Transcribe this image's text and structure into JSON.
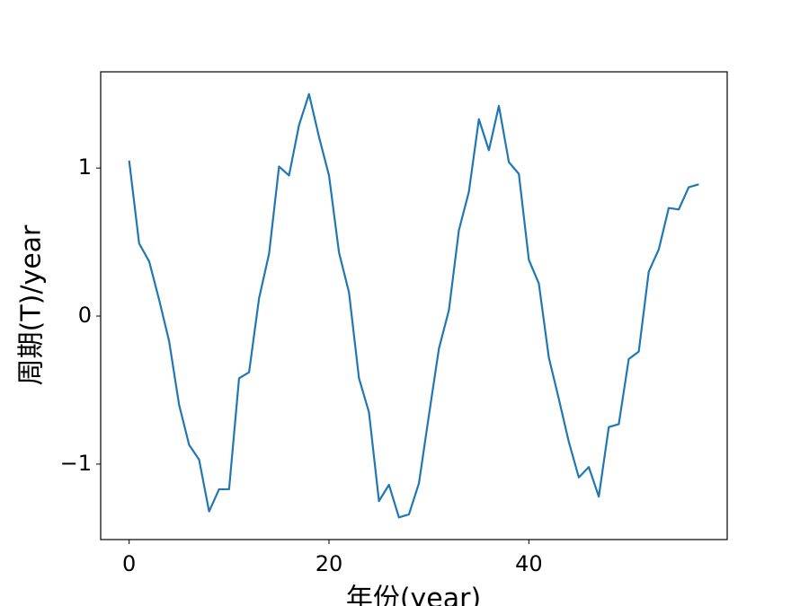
{
  "chart_data": {
    "type": "line",
    "xlabel": "年份(year)",
    "ylabel": "周期(T)/year",
    "x": [
      0,
      1,
      2,
      3,
      4,
      5,
      6,
      7,
      8,
      9,
      10,
      11,
      12,
      13,
      14,
      15,
      16,
      17,
      18,
      19,
      20,
      21,
      22,
      23,
      24,
      25,
      26,
      27,
      28,
      29,
      30,
      31,
      32,
      33,
      34,
      35,
      36,
      37,
      38,
      39,
      40,
      41,
      42,
      43,
      44,
      45,
      46,
      47,
      48,
      49,
      50,
      51,
      52,
      53,
      54,
      55,
      56,
      57
    ],
    "series": [
      {
        "color": "#1f77b4",
        "values": [
          1.05,
          0.49,
          0.37,
          0.11,
          -0.17,
          -0.6,
          -0.87,
          -0.97,
          -1.32,
          -1.17,
          -1.17,
          -0.42,
          -0.38,
          0.12,
          0.42,
          1.01,
          0.95,
          1.29,
          1.5,
          1.21,
          0.95,
          0.43,
          0.16,
          -0.42,
          -0.65,
          -1.25,
          -1.14,
          -1.36,
          -1.34,
          -1.13,
          -0.67,
          -0.22,
          0.04,
          0.58,
          0.84,
          1.33,
          1.12,
          1.42,
          1.04,
          0.96,
          0.38,
          0.22,
          -0.28,
          -0.56,
          -0.85,
          -1.09,
          -1.02,
          -1.22,
          -0.75,
          -0.73,
          -0.29,
          -0.24,
          0.3,
          0.45,
          0.73,
          0.72,
          0.87,
          0.89
        ]
      }
    ],
    "xlim": [
      -2.85,
      59.85
    ],
    "xticks": [
      0,
      20,
      40
    ],
    "ylim": [
      -1.51,
      1.65
    ],
    "yticks": [
      {
        "value": -1,
        "label": "−1"
      },
      0,
      1
    ]
  }
}
